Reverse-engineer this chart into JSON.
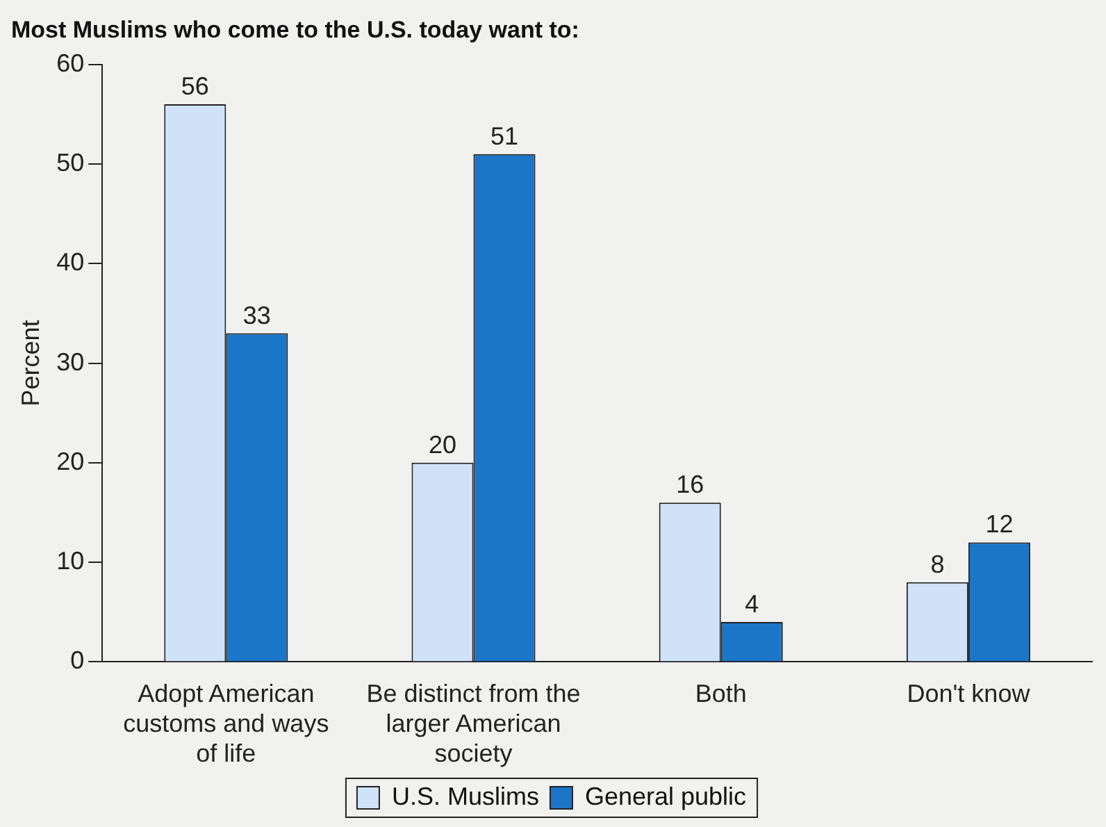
{
  "chart_data": {
    "type": "bar",
    "title": "Most Muslims who come to the U.S. today want to:",
    "ylabel": "Percent",
    "categories": [
      "Adopt American customs and ways of life",
      "Be distinct from the larger American society",
      "Both",
      "Don't know"
    ],
    "series": [
      {
        "name": "U.S. Muslims",
        "color": "#cfe2f7",
        "values": [
          56,
          20,
          16,
          8
        ]
      },
      {
        "name": "General public",
        "color": "#1b76c8",
        "values": [
          33,
          51,
          4,
          12
        ]
      }
    ],
    "ylim": [
      0,
      60
    ],
    "yticks": [
      0,
      10,
      20,
      30,
      40,
      50,
      60
    ],
    "grid": false,
    "legend": "bottom",
    "data_labels": true
  }
}
